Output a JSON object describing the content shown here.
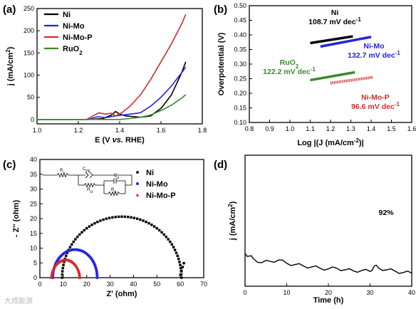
{
  "watermark": "大成能源",
  "chart_data": [
    {
      "panel": "(a)",
      "type": "line",
      "xlabel": "E (V vs. RHE)",
      "ylabel": "j (mA/cm2)",
      "xlim": [
        1.0,
        1.8
      ],
      "ylim": [
        -10,
        250
      ],
      "xticks": [
        1.0,
        1.2,
        1.4,
        1.6,
        1.8
      ],
      "yticks": [
        0,
        50,
        100,
        150,
        200,
        250
      ],
      "legend": "top-left",
      "series": [
        {
          "name": "Ni",
          "color": "#000000",
          "x": [
            1.0,
            1.25,
            1.32,
            1.36,
            1.38,
            1.4,
            1.43,
            1.5,
            1.55,
            1.6,
            1.65,
            1.7,
            1.72
          ],
          "y": [
            0,
            0,
            2,
            10,
            18,
            12,
            8,
            5,
            8,
            25,
            55,
            105,
            130
          ]
        },
        {
          "name": "Ni-Mo",
          "color": "#2424e0",
          "x": [
            1.0,
            1.25,
            1.28,
            1.3,
            1.33,
            1.38,
            1.45,
            1.5,
            1.55,
            1.6,
            1.65,
            1.7,
            1.72
          ],
          "y": [
            0,
            0,
            5,
            6,
            4,
            8,
            12,
            15,
            30,
            50,
            75,
            105,
            118
          ]
        },
        {
          "name": "Ni-Mo-P",
          "color": "#d62a2a",
          "x": [
            1.0,
            1.24,
            1.27,
            1.3,
            1.33,
            1.36,
            1.38,
            1.41,
            1.45,
            1.5,
            1.55,
            1.6,
            1.65,
            1.7,
            1.72
          ],
          "y": [
            0,
            0,
            8,
            15,
            12,
            14,
            8,
            15,
            30,
            55,
            90,
            130,
            170,
            215,
            237
          ]
        },
        {
          "name": "RuO2",
          "color": "#3a8a2a",
          "x": [
            1.0,
            1.4,
            1.45,
            1.5,
            1.55,
            1.6,
            1.65,
            1.7,
            1.72
          ],
          "y": [
            0,
            0,
            2,
            5,
            10,
            20,
            32,
            48,
            56
          ]
        }
      ]
    },
    {
      "panel": "(b)",
      "type": "line",
      "xlabel": "Log |(J (mA/cm",
      "xlabel_end": ")|",
      "ylabel": "Overpotential (V)",
      "xlim": [
        0.8,
        1.6
      ],
      "ylim": [
        0.1,
        0.5
      ],
      "xticks": [
        0.8,
        0.9,
        1.0,
        1.1,
        1.2,
        1.3,
        1.4,
        1.5,
        1.6
      ],
      "yticks": [
        0.1,
        0.15,
        0.2,
        0.25,
        0.3,
        0.35,
        0.4,
        0.45,
        0.5
      ],
      "series": [
        {
          "name": "Ni",
          "slope": "108.7 mV dec-1",
          "color": "#000000",
          "x": [
            1.1,
            1.31
          ],
          "y": [
            0.372,
            0.395
          ]
        },
        {
          "name": "Ni-Mo",
          "slope": "132.7 mV dec-1",
          "color": "#2424e0",
          "x": [
            1.15,
            1.4
          ],
          "y": [
            0.36,
            0.393
          ]
        },
        {
          "name": "RuO2",
          "slope": "122.2 mV dec-1",
          "color": "#3a8a2a",
          "x": [
            1.1,
            1.32
          ],
          "y": [
            0.245,
            0.272
          ]
        },
        {
          "name": "Ni-Mo-P",
          "slope": "96.6 mV dec-1",
          "color": "#d62a2a",
          "x": [
            1.2,
            1.41
          ],
          "y": [
            0.235,
            0.255
          ]
        }
      ]
    },
    {
      "panel": "(c)",
      "type": "scatter",
      "xlabel": "Z' (ohm)",
      "ylabel": "- Z'' (ohm)",
      "xlim": [
        0,
        70
      ],
      "ylim": [
        0,
        40
      ],
      "xticks": [
        0,
        10,
        20,
        30,
        40,
        50,
        60,
        70
      ],
      "yticks": [
        0,
        5,
        10,
        15,
        20,
        25,
        30,
        35,
        40
      ],
      "legend": "top-right",
      "circuit_labels": [
        "Rs",
        "CPE",
        "Rct",
        "Cp",
        "Rp"
      ],
      "series": [
        {
          "name": "Ni",
          "marker": "square",
          "color": "#000000",
          "center": 35,
          "radius": 25.5,
          "tail_x": [
            60.0,
            60.5,
            61.0,
            61.5
          ]
        },
        {
          "name": "Ni-Mo",
          "marker": "circle",
          "color": "#2424e0",
          "center": 15,
          "radius": 9.5,
          "tail_x": []
        },
        {
          "name": "Ni-Mo-P",
          "marker": "triangle",
          "color": "#d62a2a",
          "center": 11,
          "radius": 6.0,
          "tail_x": []
        }
      ]
    },
    {
      "panel": "(d)",
      "type": "line",
      "xlabel": "Time (h)",
      "ylabel": "j (mA/cm2)",
      "xlim": [
        0,
        40
      ],
      "ylim": [
        0,
        40
      ],
      "xticks": [
        0,
        10,
        20,
        30,
        40
      ],
      "annotation": "92%",
      "series": [
        {
          "name": "",
          "color": "#000000",
          "x": [
            0,
            1,
            2,
            4,
            6,
            8,
            10,
            12,
            14,
            16,
            18,
            20,
            22,
            24,
            26,
            28,
            30,
            31,
            32,
            34,
            36,
            38,
            40
          ],
          "y": [
            10,
            9.2,
            8.4,
            7.2,
            7.6,
            8.0,
            7.0,
            6.6,
            6.2,
            5.9,
            5.5,
            5.3,
            5.5,
            5.0,
            4.7,
            4.8,
            4.5,
            6.2,
            5.6,
            5.0,
            4.6,
            4.2,
            4.0
          ]
        }
      ]
    }
  ]
}
